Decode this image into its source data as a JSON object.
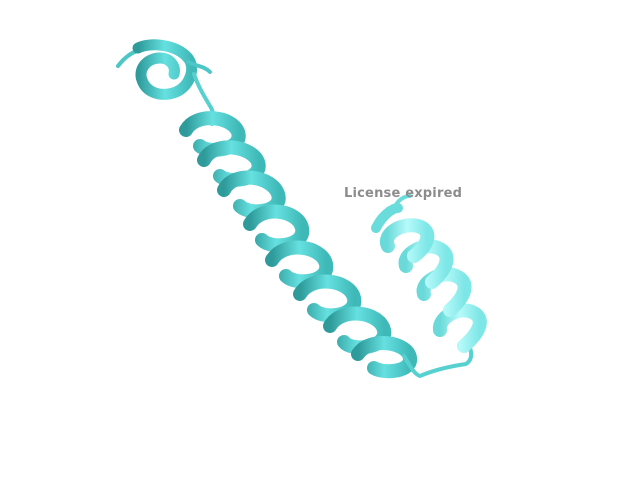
{
  "viewer": {
    "watermark_text": "License expired",
    "background_color": "#ffffff"
  },
  "molecule": {
    "representation": "cartoon",
    "secondary_structure": [
      "helix",
      "helix",
      "helix"
    ],
    "color_main": "#5ad8d8",
    "color_light": "#9ff4f4",
    "color_dark": "#2e9090"
  }
}
